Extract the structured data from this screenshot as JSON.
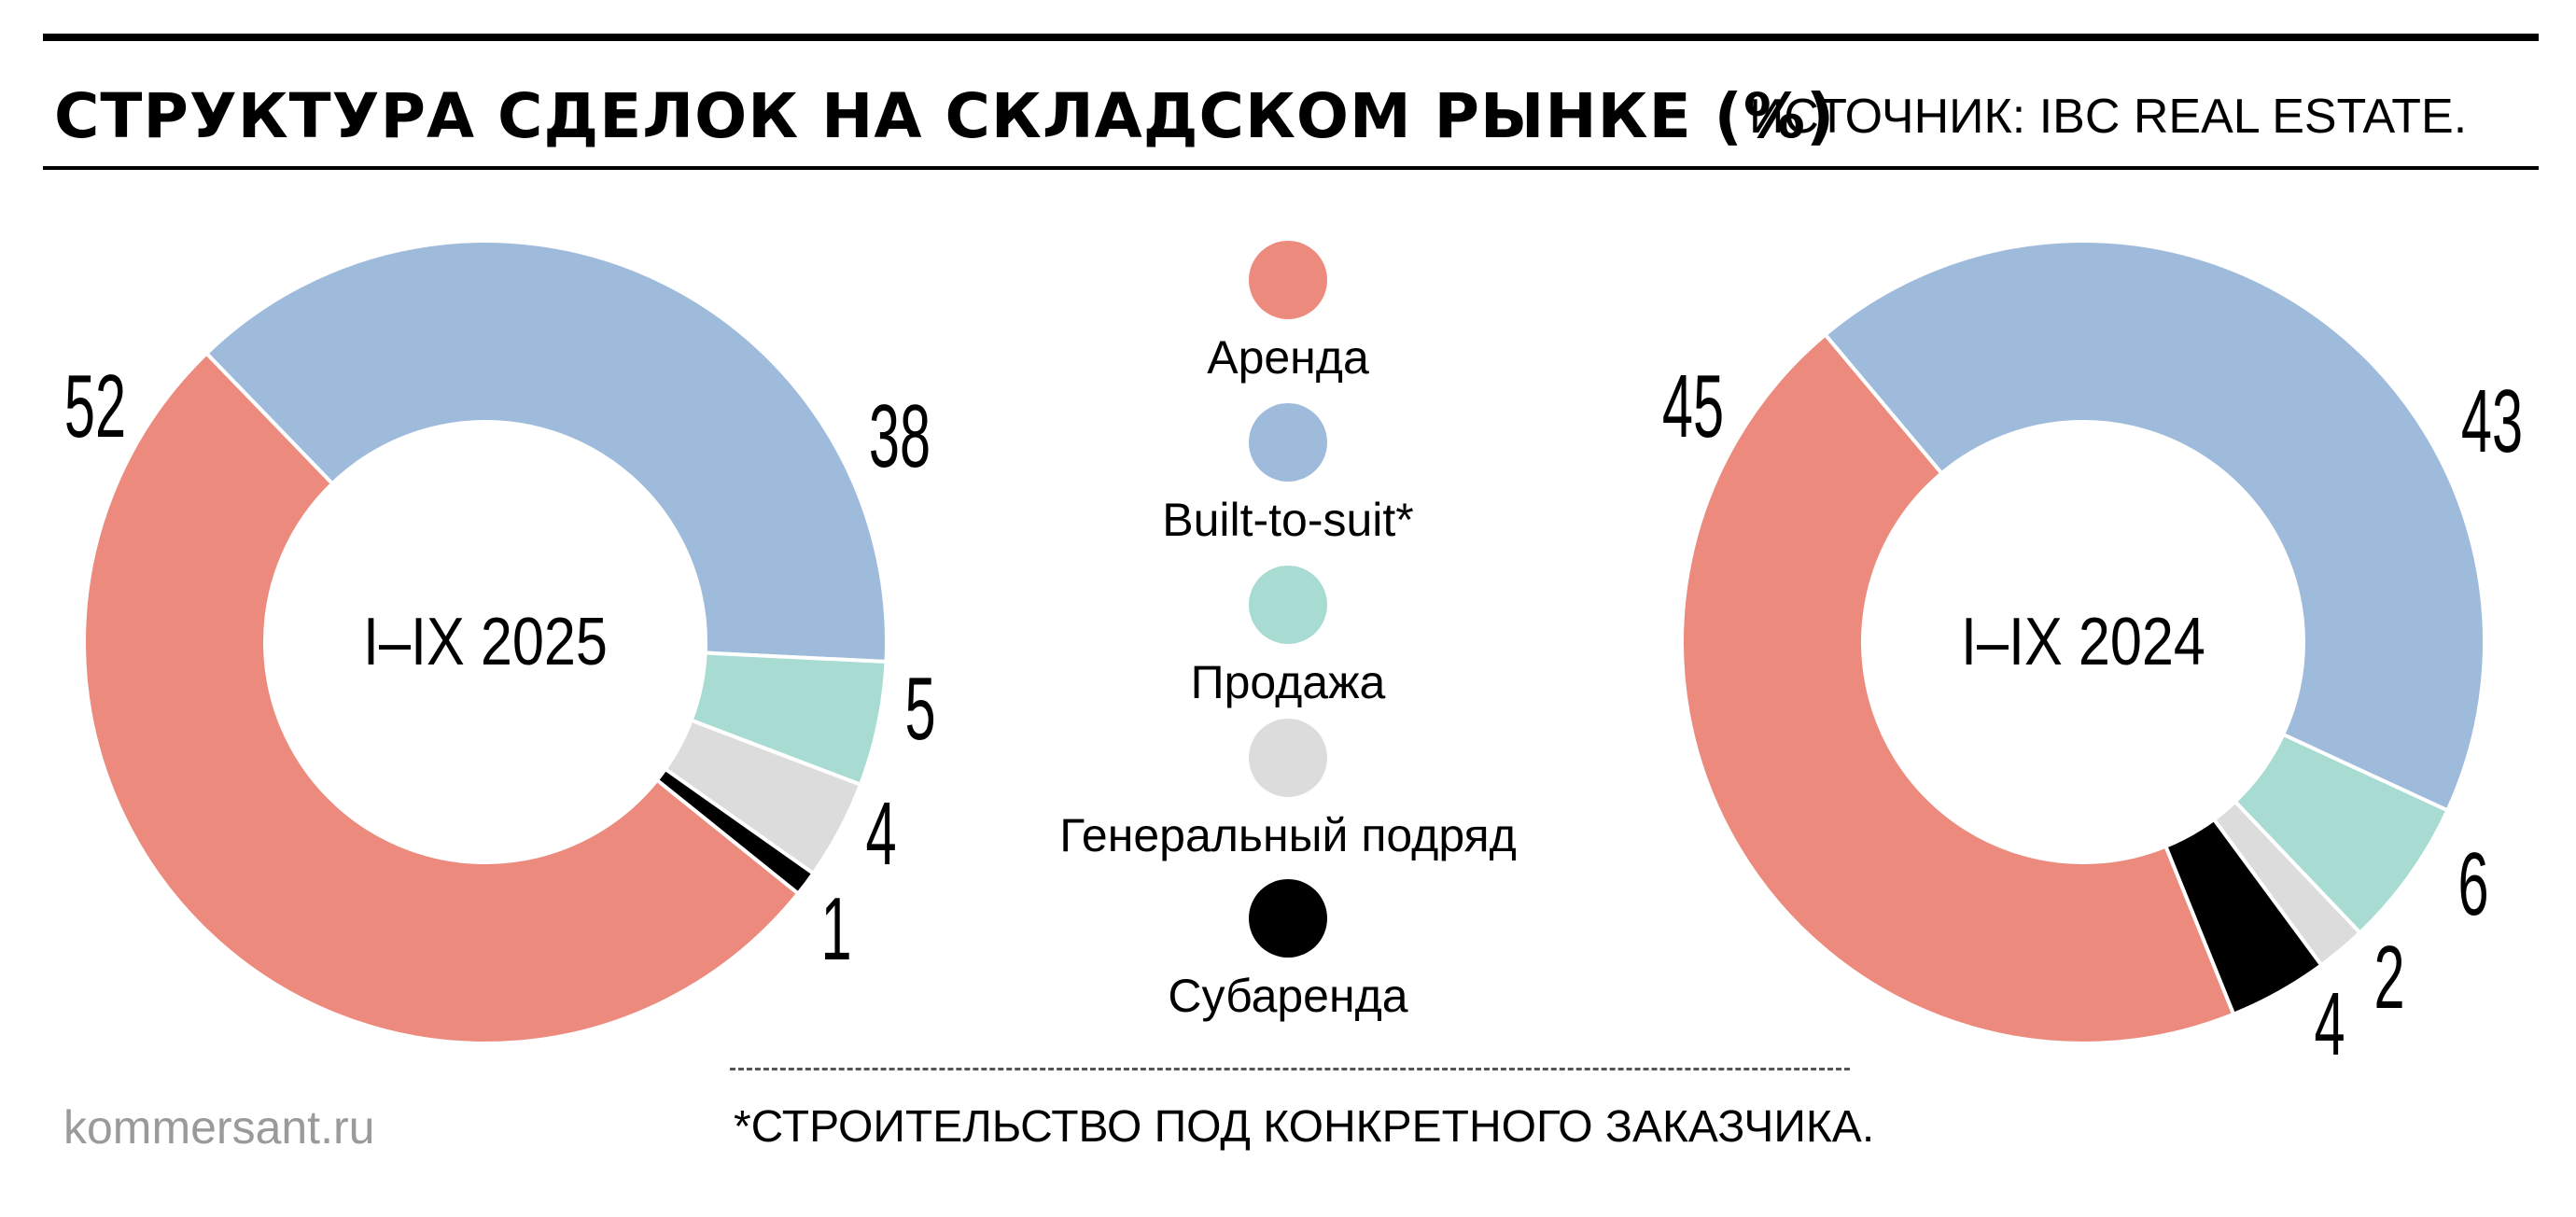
{
  "header": {
    "title": "СТРУКТУРА СДЕЛОК НА СКЛАДСКОМ РЫНКЕ (%)",
    "source": "ИСТОЧНИК: IBC REAL ESTATE."
  },
  "footer": {
    "footnote": "*СТРОИТЕЛЬСТВО ПОД КОНКРЕТНОГО ЗАКАЗЧИКА.",
    "site": "kommersant.ru"
  },
  "colors": {
    "rent": "#ec8b7d",
    "bts": "#9fbbdc",
    "sale": "#a8dcd2",
    "general": "#dcdcdc",
    "sublease": "#000000"
  },
  "chart_data": [
    {
      "type": "pie",
      "subtype": "donut",
      "center_label": "I–IX 2025",
      "categories": [
        "Аренда",
        "Built-to-suit*",
        "Продажа",
        "Генеральный подряд",
        "Субаренда"
      ],
      "values": [
        52,
        38,
        5,
        4,
        1
      ],
      "legend": "center"
    },
    {
      "type": "pie",
      "subtype": "donut",
      "center_label": "I–IX 2024",
      "categories": [
        "Аренда",
        "Built-to-suit*",
        "Продажа",
        "Генеральный подряд",
        "Субаренда"
      ],
      "values": [
        45,
        43,
        6,
        2,
        4
      ],
      "legend": "center"
    }
  ],
  "legend": {
    "items": [
      {
        "label": "Аренда",
        "color": "#ec8b7d"
      },
      {
        "label": "Built-to-suit*",
        "color": "#9fbbdc"
      },
      {
        "label": "Продажа",
        "color": "#a8dcd2"
      },
      {
        "label": "Генеральный подряд",
        "color": "#dcdcdc"
      },
      {
        "label": "Субаренда",
        "color": "#000000"
      }
    ]
  }
}
